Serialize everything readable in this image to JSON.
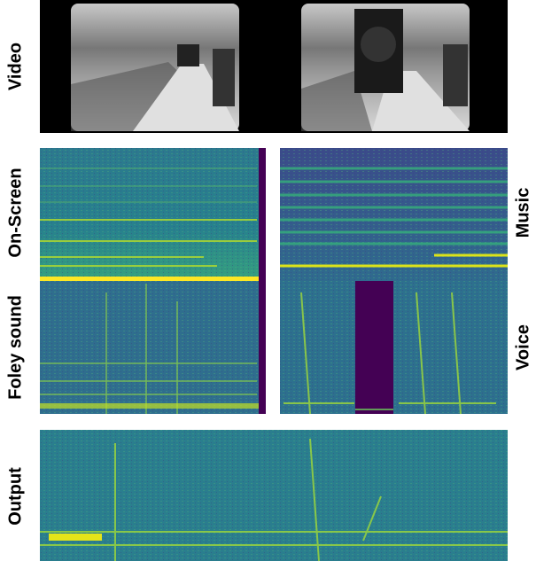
{
  "labels": {
    "video": "Video",
    "on_screen": "On-Screen",
    "foley": "Foley sound",
    "output": "Output",
    "music": "Music",
    "voice": "Voice"
  }
}
